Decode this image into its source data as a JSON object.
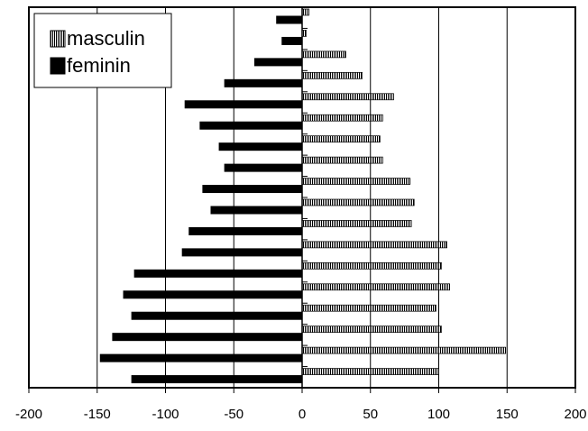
{
  "chart_data": {
    "type": "bar",
    "orientation": "horizontal",
    "categories": [
      null,
      null,
      null,
      null,
      null,
      null,
      null,
      null,
      null,
      null,
      null,
      null,
      null,
      null,
      null,
      null,
      null,
      null
    ],
    "series": [
      {
        "name": "masculin",
        "color": "#000000",
        "hatch": true,
        "values": [
          5,
          3,
          32,
          44,
          67,
          59,
          57,
          59,
          79,
          82,
          80,
          106,
          102,
          108,
          98,
          102,
          149,
          100
        ]
      },
      {
        "name": "feminin",
        "color": "#000000",
        "hatch": false,
        "values": [
          -19,
          -15,
          -35,
          -57,
          -86,
          -75,
          -61,
          -57,
          -73,
          -67,
          -83,
          -88,
          -123,
          -131,
          -125,
          -139,
          -148,
          -125
        ]
      }
    ],
    "xlim": [
      -200,
      200
    ],
    "xticks": [
      -200,
      -150,
      -100,
      -50,
      0,
      50,
      100,
      150,
      200
    ],
    "grid": true,
    "legend": "top-left"
  }
}
